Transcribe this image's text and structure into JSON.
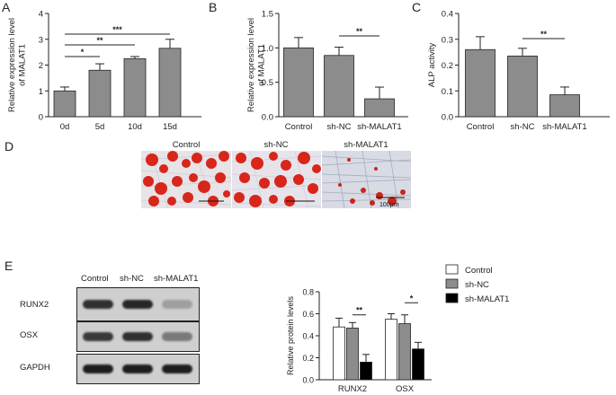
{
  "panels": {
    "a": "A",
    "b": "B",
    "c": "C",
    "d": "D",
    "e": "E"
  },
  "chart_data": [
    {
      "id": "A",
      "type": "bar",
      "categories": [
        "0d",
        "5d",
        "10d",
        "15d"
      ],
      "values": [
        1.0,
        1.8,
        2.25,
        2.65
      ],
      "errors": [
        0.15,
        0.25,
        0.08,
        0.35
      ],
      "ylabel": "Relative expression level\nof MALAT1",
      "ylim": [
        0,
        4
      ],
      "yticks": [
        "0",
        "1",
        "2",
        "3",
        "4"
      ],
      "bar_color": "#8c8c8c",
      "significance": [
        {
          "from": 0,
          "to": 1,
          "label": "*"
        },
        {
          "from": 0,
          "to": 2,
          "label": "**"
        },
        {
          "from": 0,
          "to": 3,
          "label": "***"
        }
      ]
    },
    {
      "id": "B",
      "type": "bar",
      "categories": [
        "Control",
        "sh-NC",
        "sh-MALAT1"
      ],
      "values": [
        1.0,
        0.89,
        0.26
      ],
      "errors": [
        0.15,
        0.12,
        0.17
      ],
      "ylabel": "Relative expression level\nof MALAT1",
      "ylim": [
        0,
        1.5
      ],
      "yticks": [
        "0.0",
        "0.5",
        "1.0",
        "1.5"
      ],
      "bar_color": "#8c8c8c",
      "significance": [
        {
          "from": 1,
          "to": 2,
          "label": "**"
        }
      ]
    },
    {
      "id": "C",
      "type": "bar",
      "categories": [
        "Control",
        "sh-NC",
        "sh-MALAT1"
      ],
      "values": [
        0.26,
        0.235,
        0.085
      ],
      "errors": [
        0.05,
        0.03,
        0.03
      ],
      "ylabel": "ALP activity",
      "ylim": [
        0,
        0.4
      ],
      "yticks": [
        "0.0",
        "0.1",
        "0.2",
        "0.3",
        "0.4"
      ],
      "bar_color": "#8c8c8c",
      "significance": [
        {
          "from": 1,
          "to": 2,
          "label": "**"
        }
      ]
    },
    {
      "id": "E",
      "type": "bar",
      "categories": [
        "RUNX2",
        "OSX"
      ],
      "series": [
        {
          "name": "Control",
          "values": [
            0.48,
            0.55
          ],
          "errors": [
            0.08,
            0.05
          ],
          "color": "#ffffff"
        },
        {
          "name": "sh-NC",
          "values": [
            0.47,
            0.51
          ],
          "errors": [
            0.05,
            0.08
          ],
          "color": "#8c8c8c"
        },
        {
          "name": "sh-MALAT1",
          "values": [
            0.16,
            0.28
          ],
          "errors": [
            0.07,
            0.06
          ],
          "color": "#000000"
        }
      ],
      "ylabel": "Relative protein levels",
      "ylim": [
        0,
        0.8
      ],
      "yticks": [
        "0.0",
        "0.2",
        "0.4",
        "0.6",
        "0.8"
      ],
      "legend_position": "top",
      "significance": [
        {
          "group": 0,
          "from": 1,
          "to": 2,
          "label": "**"
        },
        {
          "group": 1,
          "from": 1,
          "to": 2,
          "label": "*"
        }
      ]
    }
  ],
  "staining": {
    "labels": [
      "Control",
      "sh-NC",
      "sh-MALAT1"
    ],
    "scale_label": "100μm"
  },
  "western": {
    "columns": [
      "Control",
      "sh-NC",
      "sh-MALAT1"
    ],
    "rows": [
      {
        "label": "RUNX2",
        "intensity": [
          0.85,
          0.9,
          0.25
        ]
      },
      {
        "label": "OSX",
        "intensity": [
          0.8,
          0.85,
          0.45
        ]
      },
      {
        "label": "GAPDH",
        "intensity": [
          0.95,
          0.95,
          0.95
        ]
      }
    ]
  }
}
